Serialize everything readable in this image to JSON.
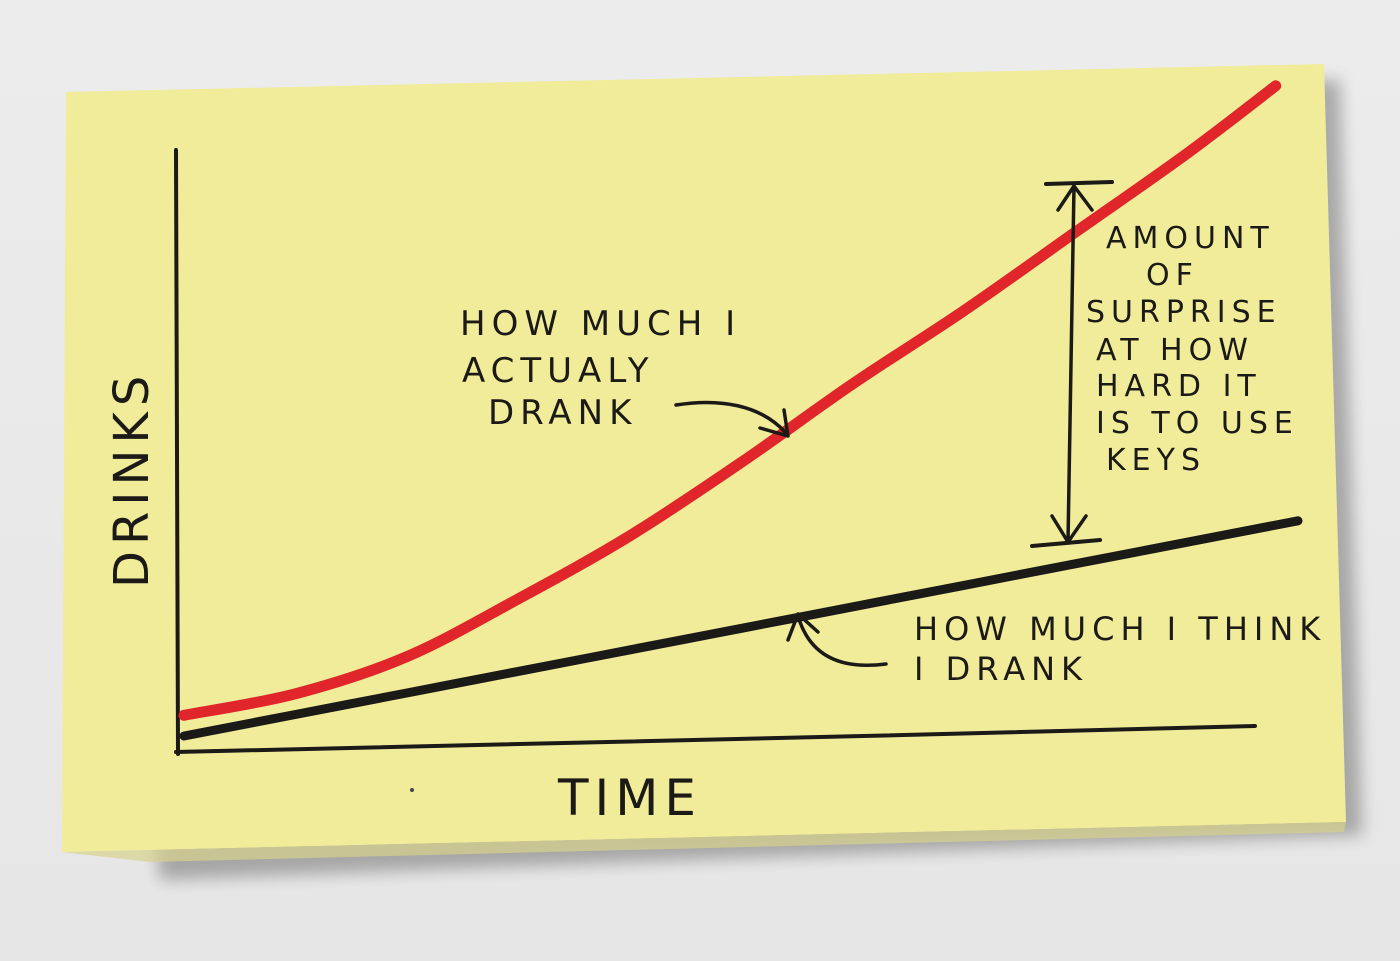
{
  "colors": {
    "paper": "#f1ec9a",
    "paper_shadow": "#c9c48a",
    "ink": "#1c1a17",
    "red_ink": "#e0262a",
    "background": "#ececec"
  },
  "chart_data": {
    "type": "line",
    "title": "",
    "xlabel": "TIME",
    "ylabel": "DRINKS",
    "x_ticks": [],
    "y_ticks": [],
    "grid": false,
    "series": [
      {
        "name": "HOW MUCH I ACTUALLY DRANK",
        "color": "#e0262a",
        "x": [
          0,
          0.1,
          0.2,
          0.3,
          0.4,
          0.5,
          0.6,
          0.7,
          0.8,
          0.9,
          0.98
        ],
        "y": [
          0.04,
          0.08,
          0.15,
          0.26,
          0.38,
          0.52,
          0.67,
          0.81,
          0.96,
          1.11,
          1.24
        ]
      },
      {
        "name": "HOW MUCH I THINK I DRANK",
        "color": "#1c1a17",
        "x": [
          0,
          0.1,
          0.2,
          0.3,
          0.4,
          0.5,
          0.6,
          0.7,
          0.8,
          0.9,
          1.0
        ],
        "y": [
          0.0,
          0.04,
          0.08,
          0.12,
          0.16,
          0.2,
          0.24,
          0.28,
          0.32,
          0.36,
          0.4
        ]
      }
    ],
    "annotations": [
      {
        "id": "actual",
        "lines": [
          "HOW MUCH I",
          "ACTUALY",
          "DRANK"
        ]
      },
      {
        "id": "think",
        "lines": [
          "HOW MUCH I THINK",
          "I DRANK"
        ]
      },
      {
        "id": "surprise",
        "lines": [
          "AMOUNT",
          "OF",
          "SURPRISE",
          "AT HOW",
          "HARD IT",
          "IS TO USE",
          "KEYS"
        ]
      }
    ]
  }
}
